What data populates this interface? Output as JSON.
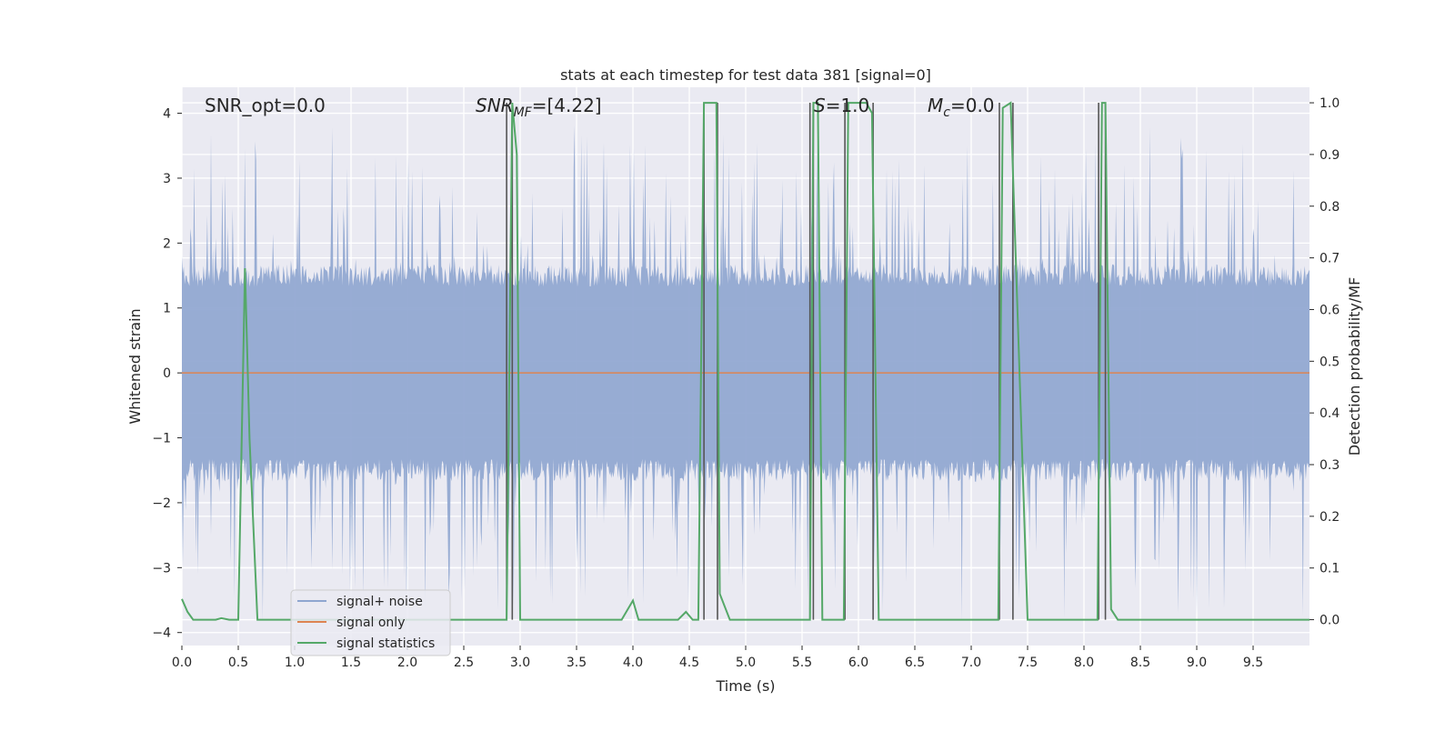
{
  "chart_data": {
    "type": "line",
    "title": "stats at each timestep for test data 381 [signal=0]",
    "xlabel": "Time (s)",
    "ylabel": "Whitened strain",
    "y2label": "Detection probability/MF",
    "xlim": [
      0,
      10
    ],
    "ylim": [
      -4.2,
      4.4
    ],
    "y2lim": [
      -0.05,
      1.03
    ],
    "xticks": [
      0.0,
      0.5,
      1.0,
      1.5,
      2.0,
      2.5,
      3.0,
      3.5,
      4.0,
      4.5,
      5.0,
      5.5,
      6.0,
      6.5,
      7.0,
      7.5,
      8.0,
      8.5,
      9.0,
      9.5
    ],
    "xtick_labels": [
      "0.0",
      "0.5",
      "1.0",
      "1.5",
      "2.0",
      "2.5",
      "3.0",
      "3.5",
      "4.0",
      "4.5",
      "5.0",
      "5.5",
      "6.0",
      "6.5",
      "7.0",
      "7.5",
      "8.0",
      "8.5",
      "9.0",
      "9.5"
    ],
    "yticks": [
      -4,
      -3,
      -2,
      -1,
      0,
      1,
      2,
      3,
      4
    ],
    "ytick_labels": [
      "−4",
      "−3",
      "−2",
      "−1",
      "0",
      "1",
      "2",
      "3",
      "4"
    ],
    "y2ticks": [
      0.0,
      0.1,
      0.2,
      0.3,
      0.4,
      0.5,
      0.6,
      0.7,
      0.8,
      0.9,
      1.0
    ],
    "y2tick_labels": [
      "0.0",
      "0.1",
      "0.2",
      "0.3",
      "0.4",
      "0.5",
      "0.6",
      "0.7",
      "0.8",
      "0.9",
      "1.0"
    ],
    "grid": true,
    "legend_position": "lower-left",
    "annotations": {
      "snr_opt": "SNR_opt=0.0",
      "snr_mf_main": "SNR",
      "snr_mf_sub": "MF",
      "snr_mf_val": "=[4.22]",
      "s_main": "S",
      "s_val": "=1.0",
      "mc_main": "M",
      "mc_sub": "c",
      "mc_val": "=0.0"
    },
    "series": [
      {
        "name": "signal+ noise",
        "color": "#8fa6d0",
        "kind": "noise",
        "amplitude_typical": 1.5,
        "amplitude_peak": 3.5
      },
      {
        "name": "signal only",
        "color": "#dd8452",
        "constant_value": 0.0
      },
      {
        "name": "signal statistics",
        "color": "#55a868",
        "x": [
          0.0,
          0.05,
          0.1,
          0.3,
          0.35,
          0.42,
          0.5,
          0.56,
          0.6,
          0.67,
          2.88,
          2.93,
          2.97,
          3.0,
          3.9,
          4.0,
          4.05,
          4.4,
          4.47,
          4.53,
          4.58,
          4.63,
          4.66,
          4.74,
          4.77,
          4.86,
          5.57,
          5.6,
          5.64,
          5.68,
          5.87,
          5.91,
          5.93,
          6.07,
          6.12,
          6.18,
          7.24,
          7.28,
          7.35,
          7.5,
          8.12,
          8.16,
          8.19,
          8.24,
          8.3,
          10.0
        ],
        "y": [
          0.04,
          0.015,
          0.0,
          0.0,
          0.003,
          0.0,
          0.0,
          0.68,
          0.35,
          0.0,
          0.0,
          1.0,
          0.9,
          0.0,
          0.0,
          0.037,
          0.0,
          0.0,
          0.015,
          0.0,
          0.0,
          1.0,
          1.0,
          1.0,
          0.05,
          0.0,
          0.0,
          1.0,
          1.0,
          0.0,
          0.0,
          1.0,
          1.0,
          1.0,
          0.98,
          0.0,
          0.0,
          0.99,
          1.0,
          0.0,
          0.0,
          1.0,
          1.0,
          0.02,
          0.0,
          0.0
        ]
      }
    ],
    "markers": {
      "color": "#555555",
      "x": [
        2.88,
        2.93,
        4.63,
        4.75,
        5.57,
        5.6,
        5.88,
        6.13,
        7.25,
        7.37,
        8.13,
        8.19
      ]
    }
  }
}
